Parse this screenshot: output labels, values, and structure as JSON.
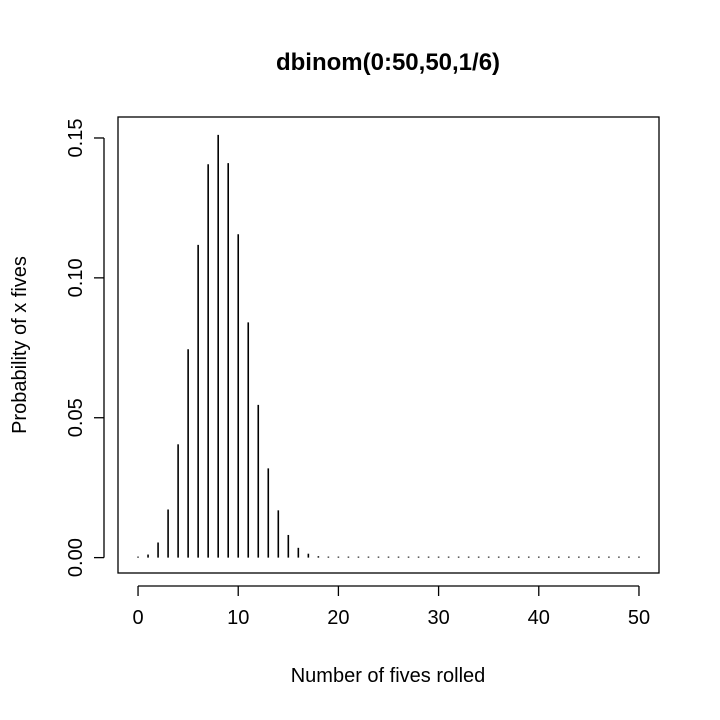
{
  "chart_data": {
    "type": "bar",
    "title": "dbinom(0:50,50,1/6)",
    "xlabel": "Number of fives rolled",
    "ylabel": "Probability of x fives",
    "xlim": [
      -2,
      52
    ],
    "ylim": [
      -0.0055,
      0.1575
    ],
    "xticks": [
      0,
      10,
      20,
      30,
      40,
      50
    ],
    "xtick_labels": [
      "0",
      "10",
      "20",
      "30",
      "40",
      "50"
    ],
    "yticks": [
      0,
      0.05,
      0.1,
      0.15
    ],
    "ytick_labels": [
      "0.00",
      "0.05",
      "0.10",
      "0.15"
    ],
    "grid": false,
    "x": [
      0,
      1,
      2,
      3,
      4,
      5,
      6,
      7,
      8,
      9,
      10,
      11,
      12,
      13,
      14,
      15,
      16,
      17,
      18,
      19,
      20,
      21,
      22,
      23,
      24,
      25,
      26,
      27,
      28,
      29,
      30,
      31,
      32,
      33,
      34,
      35,
      36,
      37,
      38,
      39,
      40,
      41,
      42,
      43,
      44,
      45,
      46,
      47,
      48,
      49,
      50
    ],
    "values": [
      0.00011,
      0.0011,
      0.0054,
      0.0172,
      0.0405,
      0.0745,
      0.1118,
      0.1406,
      0.1511,
      0.141,
      0.1156,
      0.0841,
      0.0546,
      0.0319,
      0.0169,
      0.0081,
      0.0035,
      0.0014,
      0.0005,
      0.0002,
      5e-05,
      2e-05,
      4e-06,
      1e-06,
      0,
      0,
      0,
      0,
      0,
      0,
      0,
      0,
      0,
      0,
      0,
      0,
      0,
      0,
      0,
      0,
      0,
      0,
      0,
      0,
      0,
      0,
      0,
      0,
      0,
      0,
      0
    ]
  }
}
